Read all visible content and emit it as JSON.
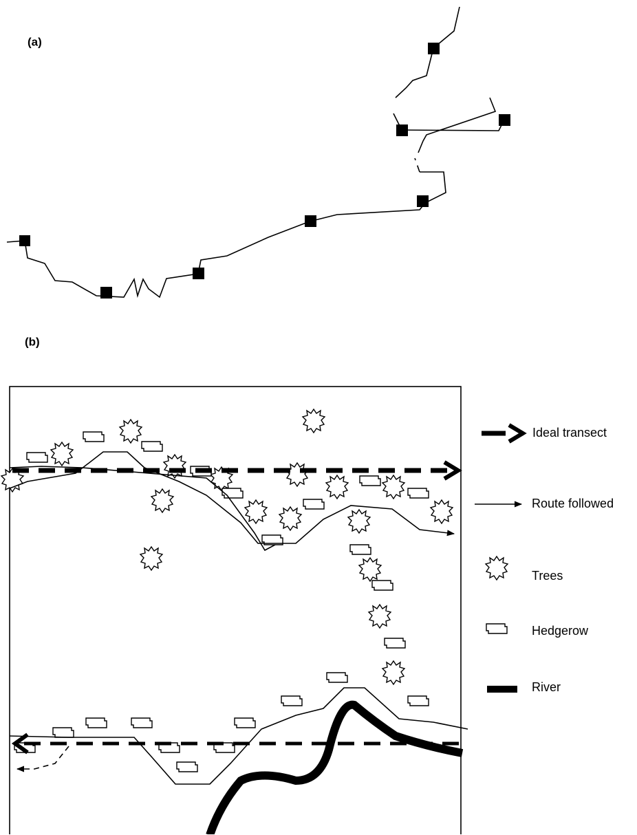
{
  "panels": [
    {
      "label": "(a)"
    },
    {
      "label": "(b)"
    }
  ],
  "legend": [
    {
      "label": "Ideal transect"
    },
    {
      "label": "Route followed"
    },
    {
      "label": "Trees"
    },
    {
      "label": "Hedgerow"
    },
    {
      "label": "River"
    }
  ]
}
